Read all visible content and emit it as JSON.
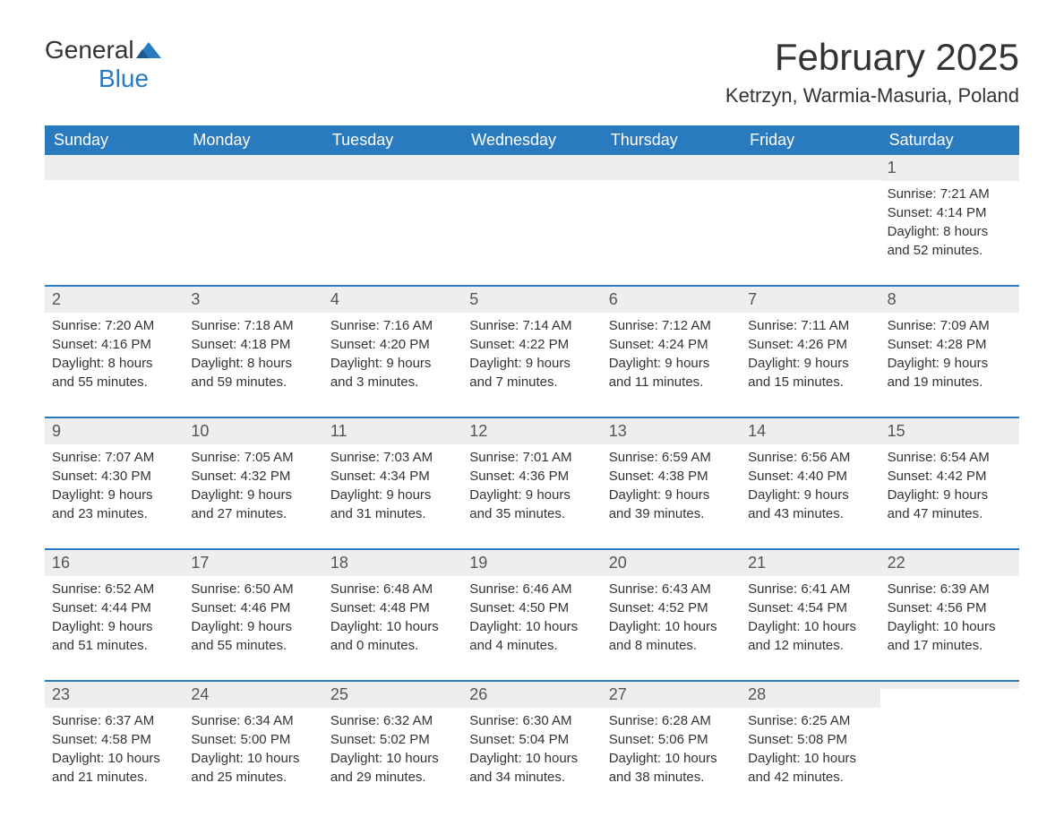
{
  "logo": {
    "text_general": "General",
    "text_blue": "Blue",
    "flag_color": "#2a7abf"
  },
  "header": {
    "month_title": "February 2025",
    "location": "Ketrzyn, Warmia-Masuria, Poland"
  },
  "colors": {
    "header_bg": "#2a7abf",
    "day_number_bg": "#eeeeee",
    "text": "#333333",
    "border": "#2a7abf"
  },
  "weekdays": [
    "Sunday",
    "Monday",
    "Tuesday",
    "Wednesday",
    "Thursday",
    "Friday",
    "Saturday"
  ],
  "weeks": [
    [
      {
        "day": "",
        "sunrise": "",
        "sunset": "",
        "daylight1": "",
        "daylight2": ""
      },
      {
        "day": "",
        "sunrise": "",
        "sunset": "",
        "daylight1": "",
        "daylight2": ""
      },
      {
        "day": "",
        "sunrise": "",
        "sunset": "",
        "daylight1": "",
        "daylight2": ""
      },
      {
        "day": "",
        "sunrise": "",
        "sunset": "",
        "daylight1": "",
        "daylight2": ""
      },
      {
        "day": "",
        "sunrise": "",
        "sunset": "",
        "daylight1": "",
        "daylight2": ""
      },
      {
        "day": "",
        "sunrise": "",
        "sunset": "",
        "daylight1": "",
        "daylight2": ""
      },
      {
        "day": "1",
        "sunrise": "Sunrise: 7:21 AM",
        "sunset": "Sunset: 4:14 PM",
        "daylight1": "Daylight: 8 hours",
        "daylight2": "and 52 minutes."
      }
    ],
    [
      {
        "day": "2",
        "sunrise": "Sunrise: 7:20 AM",
        "sunset": "Sunset: 4:16 PM",
        "daylight1": "Daylight: 8 hours",
        "daylight2": "and 55 minutes."
      },
      {
        "day": "3",
        "sunrise": "Sunrise: 7:18 AM",
        "sunset": "Sunset: 4:18 PM",
        "daylight1": "Daylight: 8 hours",
        "daylight2": "and 59 minutes."
      },
      {
        "day": "4",
        "sunrise": "Sunrise: 7:16 AM",
        "sunset": "Sunset: 4:20 PM",
        "daylight1": "Daylight: 9 hours",
        "daylight2": "and 3 minutes."
      },
      {
        "day": "5",
        "sunrise": "Sunrise: 7:14 AM",
        "sunset": "Sunset: 4:22 PM",
        "daylight1": "Daylight: 9 hours",
        "daylight2": "and 7 minutes."
      },
      {
        "day": "6",
        "sunrise": "Sunrise: 7:12 AM",
        "sunset": "Sunset: 4:24 PM",
        "daylight1": "Daylight: 9 hours",
        "daylight2": "and 11 minutes."
      },
      {
        "day": "7",
        "sunrise": "Sunrise: 7:11 AM",
        "sunset": "Sunset: 4:26 PM",
        "daylight1": "Daylight: 9 hours",
        "daylight2": "and 15 minutes."
      },
      {
        "day": "8",
        "sunrise": "Sunrise: 7:09 AM",
        "sunset": "Sunset: 4:28 PM",
        "daylight1": "Daylight: 9 hours",
        "daylight2": "and 19 minutes."
      }
    ],
    [
      {
        "day": "9",
        "sunrise": "Sunrise: 7:07 AM",
        "sunset": "Sunset: 4:30 PM",
        "daylight1": "Daylight: 9 hours",
        "daylight2": "and 23 minutes."
      },
      {
        "day": "10",
        "sunrise": "Sunrise: 7:05 AM",
        "sunset": "Sunset: 4:32 PM",
        "daylight1": "Daylight: 9 hours",
        "daylight2": "and 27 minutes."
      },
      {
        "day": "11",
        "sunrise": "Sunrise: 7:03 AM",
        "sunset": "Sunset: 4:34 PM",
        "daylight1": "Daylight: 9 hours",
        "daylight2": "and 31 minutes."
      },
      {
        "day": "12",
        "sunrise": "Sunrise: 7:01 AM",
        "sunset": "Sunset: 4:36 PM",
        "daylight1": "Daylight: 9 hours",
        "daylight2": "and 35 minutes."
      },
      {
        "day": "13",
        "sunrise": "Sunrise: 6:59 AM",
        "sunset": "Sunset: 4:38 PM",
        "daylight1": "Daylight: 9 hours",
        "daylight2": "and 39 minutes."
      },
      {
        "day": "14",
        "sunrise": "Sunrise: 6:56 AM",
        "sunset": "Sunset: 4:40 PM",
        "daylight1": "Daylight: 9 hours",
        "daylight2": "and 43 minutes."
      },
      {
        "day": "15",
        "sunrise": "Sunrise: 6:54 AM",
        "sunset": "Sunset: 4:42 PM",
        "daylight1": "Daylight: 9 hours",
        "daylight2": "and 47 minutes."
      }
    ],
    [
      {
        "day": "16",
        "sunrise": "Sunrise: 6:52 AM",
        "sunset": "Sunset: 4:44 PM",
        "daylight1": "Daylight: 9 hours",
        "daylight2": "and 51 minutes."
      },
      {
        "day": "17",
        "sunrise": "Sunrise: 6:50 AM",
        "sunset": "Sunset: 4:46 PM",
        "daylight1": "Daylight: 9 hours",
        "daylight2": "and 55 minutes."
      },
      {
        "day": "18",
        "sunrise": "Sunrise: 6:48 AM",
        "sunset": "Sunset: 4:48 PM",
        "daylight1": "Daylight: 10 hours",
        "daylight2": "and 0 minutes."
      },
      {
        "day": "19",
        "sunrise": "Sunrise: 6:46 AM",
        "sunset": "Sunset: 4:50 PM",
        "daylight1": "Daylight: 10 hours",
        "daylight2": "and 4 minutes."
      },
      {
        "day": "20",
        "sunrise": "Sunrise: 6:43 AM",
        "sunset": "Sunset: 4:52 PM",
        "daylight1": "Daylight: 10 hours",
        "daylight2": "and 8 minutes."
      },
      {
        "day": "21",
        "sunrise": "Sunrise: 6:41 AM",
        "sunset": "Sunset: 4:54 PM",
        "daylight1": "Daylight: 10 hours",
        "daylight2": "and 12 minutes."
      },
      {
        "day": "22",
        "sunrise": "Sunrise: 6:39 AM",
        "sunset": "Sunset: 4:56 PM",
        "daylight1": "Daylight: 10 hours",
        "daylight2": "and 17 minutes."
      }
    ],
    [
      {
        "day": "23",
        "sunrise": "Sunrise: 6:37 AM",
        "sunset": "Sunset: 4:58 PM",
        "daylight1": "Daylight: 10 hours",
        "daylight2": "and 21 minutes."
      },
      {
        "day": "24",
        "sunrise": "Sunrise: 6:34 AM",
        "sunset": "Sunset: 5:00 PM",
        "daylight1": "Daylight: 10 hours",
        "daylight2": "and 25 minutes."
      },
      {
        "day": "25",
        "sunrise": "Sunrise: 6:32 AM",
        "sunset": "Sunset: 5:02 PM",
        "daylight1": "Daylight: 10 hours",
        "daylight2": "and 29 minutes."
      },
      {
        "day": "26",
        "sunrise": "Sunrise: 6:30 AM",
        "sunset": "Sunset: 5:04 PM",
        "daylight1": "Daylight: 10 hours",
        "daylight2": "and 34 minutes."
      },
      {
        "day": "27",
        "sunrise": "Sunrise: 6:28 AM",
        "sunset": "Sunset: 5:06 PM",
        "daylight1": "Daylight: 10 hours",
        "daylight2": "and 38 minutes."
      },
      {
        "day": "28",
        "sunrise": "Sunrise: 6:25 AM",
        "sunset": "Sunset: 5:08 PM",
        "daylight1": "Daylight: 10 hours",
        "daylight2": "and 42 minutes."
      },
      {
        "day": "",
        "sunrise": "",
        "sunset": "",
        "daylight1": "",
        "daylight2": ""
      }
    ]
  ]
}
